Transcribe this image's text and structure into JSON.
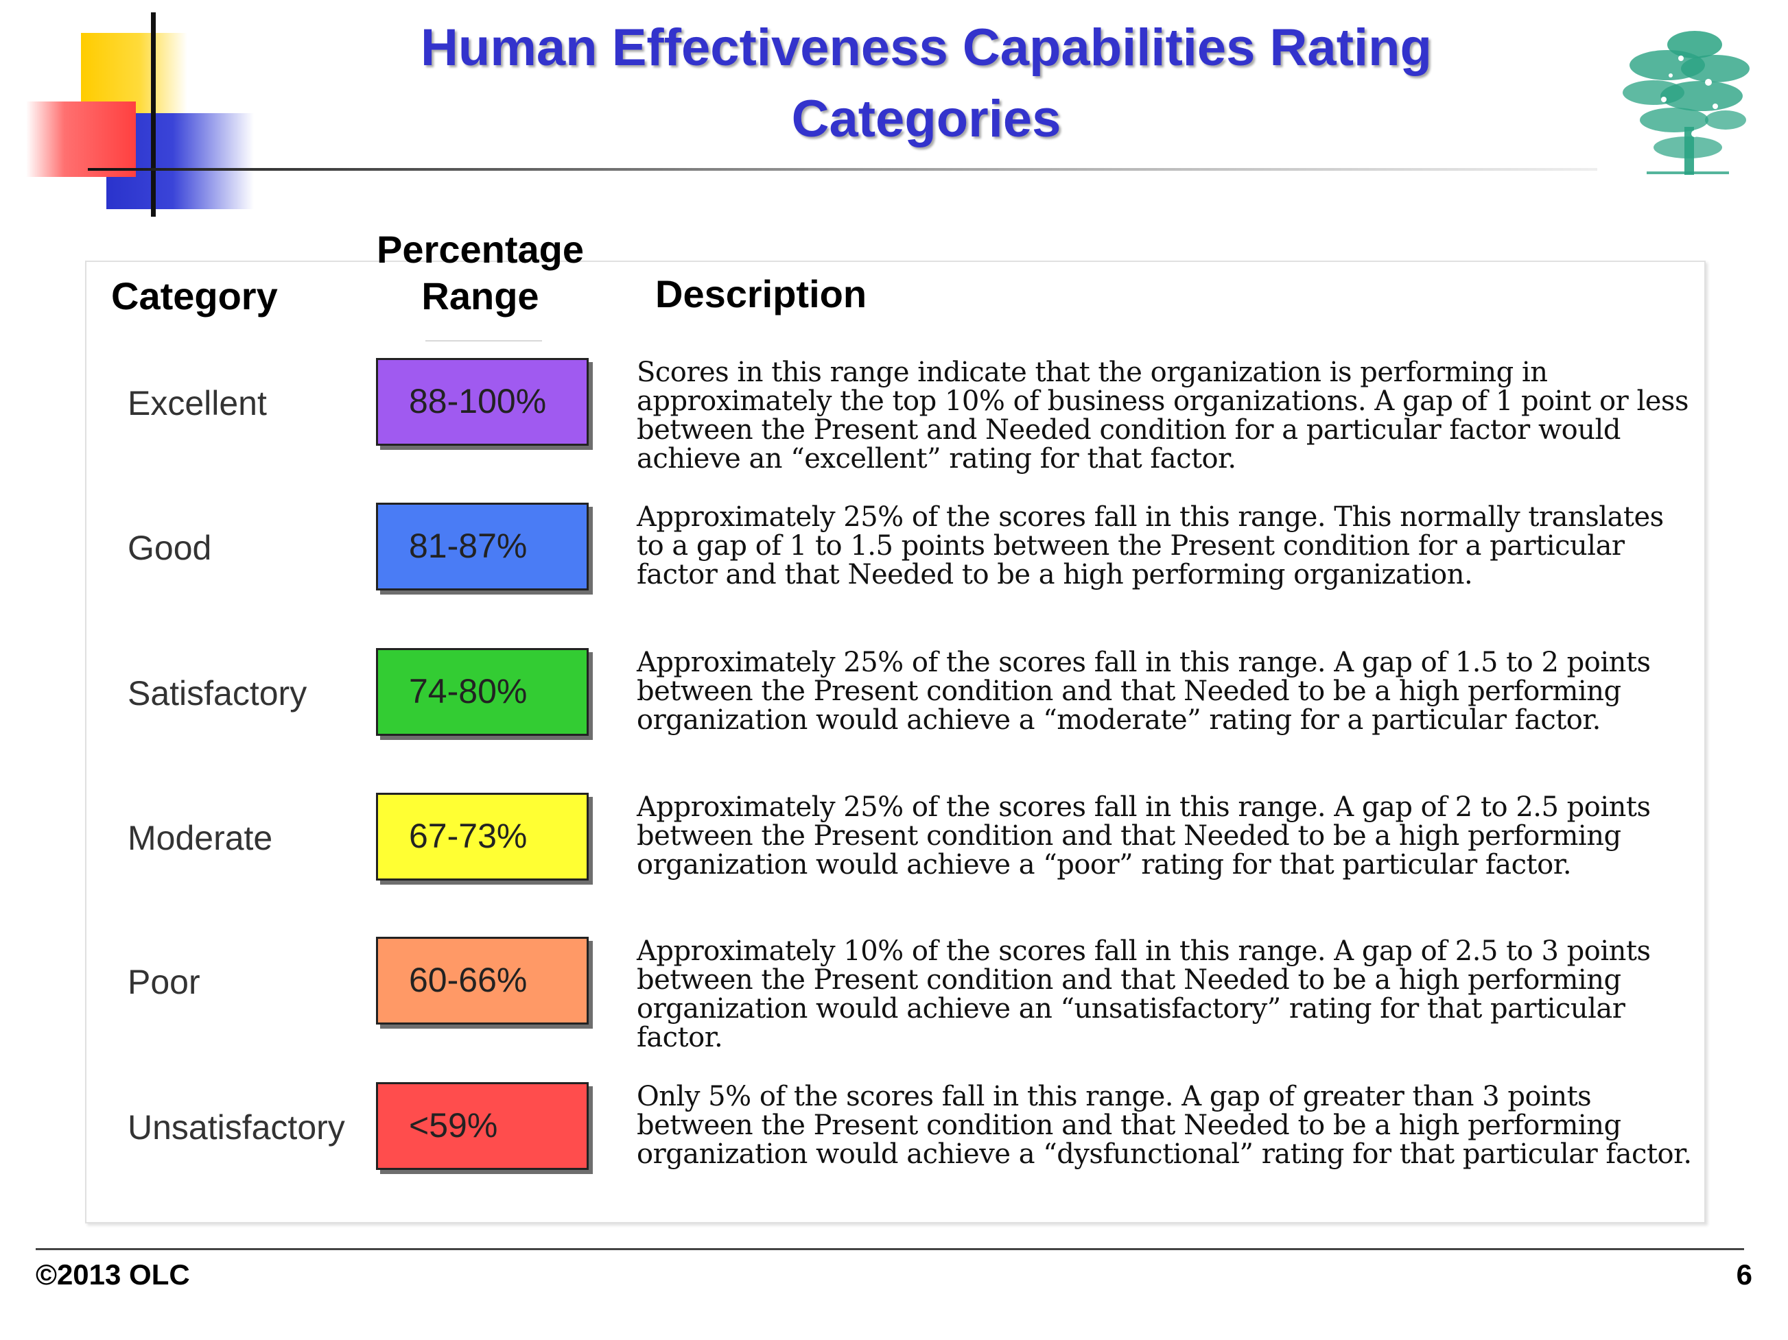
{
  "slide": {
    "title_line1": "Human Effectiveness Capabilities Rating",
    "title_line2": "Categories",
    "logo_icon": "tree-icon"
  },
  "table": {
    "headers": {
      "category": "Category",
      "percentage_line1": "Percentage",
      "percentage_line2": "Range",
      "description": "Description"
    },
    "rows": [
      {
        "category": "Excellent",
        "range": "88-100%",
        "color": "#a05af0",
        "description": "Scores in this range indicate that the organization is performing in approximately the top 10% of business organizations.  A gap of 1 point or less between the Present and Needed condition for a particular factor would achieve an “excellent” rating for that factor."
      },
      {
        "category": "Good",
        "range": "81-87%",
        "color": "#4a7cf5",
        "description": "Approximately 25% of the scores fall in this range.  This normally translates to a gap of 1 to 1.5 points between the Present condition for a particular factor and that Needed to be a high performing organization."
      },
      {
        "category": "Satisfactory",
        "range": "74-80%",
        "color": "#33cc33",
        "description": "Approximately 25% of the scores fall in this range.  A gap of 1.5 to 2 points between the Present condition and that Needed to be a high performing organization would achieve a “moderate” rating for a particular factor."
      },
      {
        "category": "Moderate",
        "range": "67-73%",
        "color": "#ffff33",
        "description": "Approximately 25% of the scores fall in this range.  A gap of 2 to 2.5 points between the Present condition and that Needed to be a high performing organization would achieve a “poor” rating for that particular factor."
      },
      {
        "category": "Poor",
        "range": "60-66%",
        "color": "#ff9966",
        "description": "Approximately 10% of the scores fall in this range.  A gap of 2.5 to 3 points between the Present condition and that Needed to be a high performing organization would achieve an “unsatisfactory” rating for that particular factor."
      },
      {
        "category": "Unsatisfactory",
        "range": "<59%",
        "color": "#ff4d4d",
        "description": "Only 5% of the scores fall in this range.  A gap of greater than 3 points between the Present condition and that Needed to be a high performing organization would achieve a “dysfunctional” rating for that particular factor."
      }
    ]
  },
  "footer": {
    "copyright": "©2013 OLC",
    "page_number": "6"
  }
}
